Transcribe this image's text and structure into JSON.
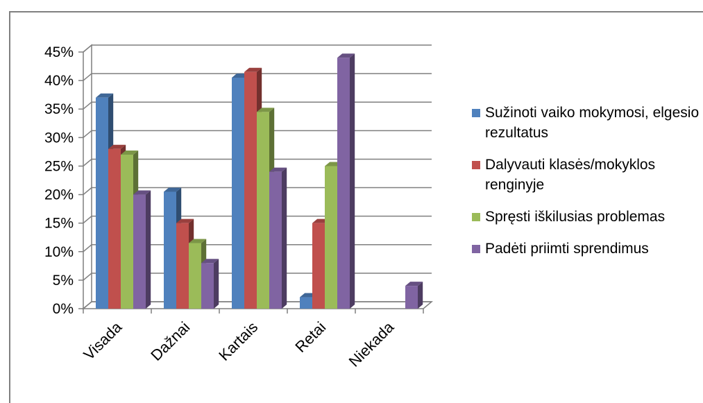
{
  "chart_data": {
    "type": "bar",
    "categories": [
      "Visada",
      "Dažnai",
      "Kartais",
      "Retai",
      "Niekada"
    ],
    "series": [
      {
        "name": "Sužinoti vaiko mokymosi, elgesio rezultatus",
        "color": "#4f81bd",
        "values": [
          37,
          20.5,
          40.5,
          2,
          0
        ]
      },
      {
        "name": "Dalyvauti klasės/mokyklos renginyje",
        "color": "#c0504d",
        "values": [
          28,
          15,
          41.5,
          15,
          0
        ]
      },
      {
        "name": "Spręsti iškilusias problemas",
        "color": "#9bbb59",
        "values": [
          27,
          11.5,
          34.5,
          25,
          0
        ]
      },
      {
        "name": "Padėti priimti sprendimus",
        "color": "#8064a2",
        "values": [
          20,
          8,
          24,
          44,
          4
        ]
      }
    ],
    "ylim": [
      0,
      45
    ],
    "yticks": [
      "0%",
      "5%",
      "10%",
      "15%",
      "20%",
      "25%",
      "30%",
      "35%",
      "40%",
      "45%"
    ],
    "ytick_values": [
      0,
      5,
      10,
      15,
      20,
      25,
      30,
      35,
      40,
      45
    ],
    "grid": true,
    "legend_position": "right",
    "style": "3d"
  }
}
